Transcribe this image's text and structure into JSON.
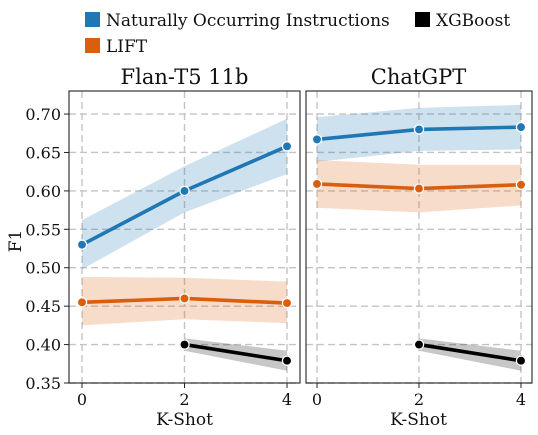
{
  "legend": {
    "placement": "top",
    "entries": [
      {
        "name": "Naturally Occurring Instructions",
        "color": "#1f77b4"
      },
      {
        "name": "XGBoost",
        "color": "#000000"
      },
      {
        "name": "LIFT",
        "color": "#d95f0e"
      }
    ]
  },
  "chart_data": [
    {
      "type": "line",
      "title": "Flan-T5 11b",
      "xlabel": "K-Shot",
      "ylabel": "F1",
      "xlim": [
        0,
        4
      ],
      "ylim": [
        0.35,
        0.73
      ],
      "xticks": [
        "0",
        "2",
        "4"
      ],
      "yticks": [
        "0.35",
        "0.40",
        "0.45",
        "0.50",
        "0.55",
        "0.60",
        "0.65",
        "0.70"
      ],
      "grid": true,
      "series": [
        {
          "name": "Naturally Occurring Instructions",
          "color": "#1f77b4",
          "x": [
            0,
            2,
            4
          ],
          "y": [
            0.53,
            0.6,
            0.658
          ],
          "ci_low": [
            0.498,
            0.572,
            0.622
          ],
          "ci_high": [
            0.562,
            0.632,
            0.694
          ]
        },
        {
          "name": "LIFT",
          "color": "#d95f0e",
          "x": [
            0,
            2,
            4
          ],
          "y": [
            0.455,
            0.46,
            0.454
          ],
          "ci_low": [
            0.425,
            0.433,
            0.428
          ],
          "ci_high": [
            0.488,
            0.487,
            0.482
          ]
        },
        {
          "name": "XGBoost",
          "color": "#000000",
          "x": [
            2,
            4
          ],
          "y": [
            0.4,
            0.379
          ],
          "ci_low": [
            0.392,
            0.366
          ],
          "ci_high": [
            0.408,
            0.392
          ]
        }
      ]
    },
    {
      "type": "line",
      "title": "ChatGPT",
      "xlabel": "K-Shot",
      "ylabel": "",
      "xlim": [
        0,
        4
      ],
      "ylim": [
        0.35,
        0.73
      ],
      "xticks": [
        "0",
        "2",
        "4"
      ],
      "yticks": [],
      "grid": true,
      "series": [
        {
          "name": "Naturally Occurring Instructions",
          "color": "#1f77b4",
          "x": [
            0,
            2,
            4
          ],
          "y": [
            0.667,
            0.68,
            0.683
          ],
          "ci_low": [
            0.638,
            0.652,
            0.654
          ],
          "ci_high": [
            0.696,
            0.708,
            0.712
          ]
        },
        {
          "name": "LIFT",
          "color": "#d95f0e",
          "x": [
            0,
            2,
            4
          ],
          "y": [
            0.609,
            0.603,
            0.608
          ],
          "ci_low": [
            0.578,
            0.572,
            0.581
          ],
          "ci_high": [
            0.64,
            0.634,
            0.634
          ]
        },
        {
          "name": "XGBoost",
          "color": "#000000",
          "x": [
            2,
            4
          ],
          "y": [
            0.4,
            0.379
          ],
          "ci_low": [
            0.392,
            0.366
          ],
          "ci_high": [
            0.408,
            0.392
          ]
        }
      ]
    }
  ]
}
